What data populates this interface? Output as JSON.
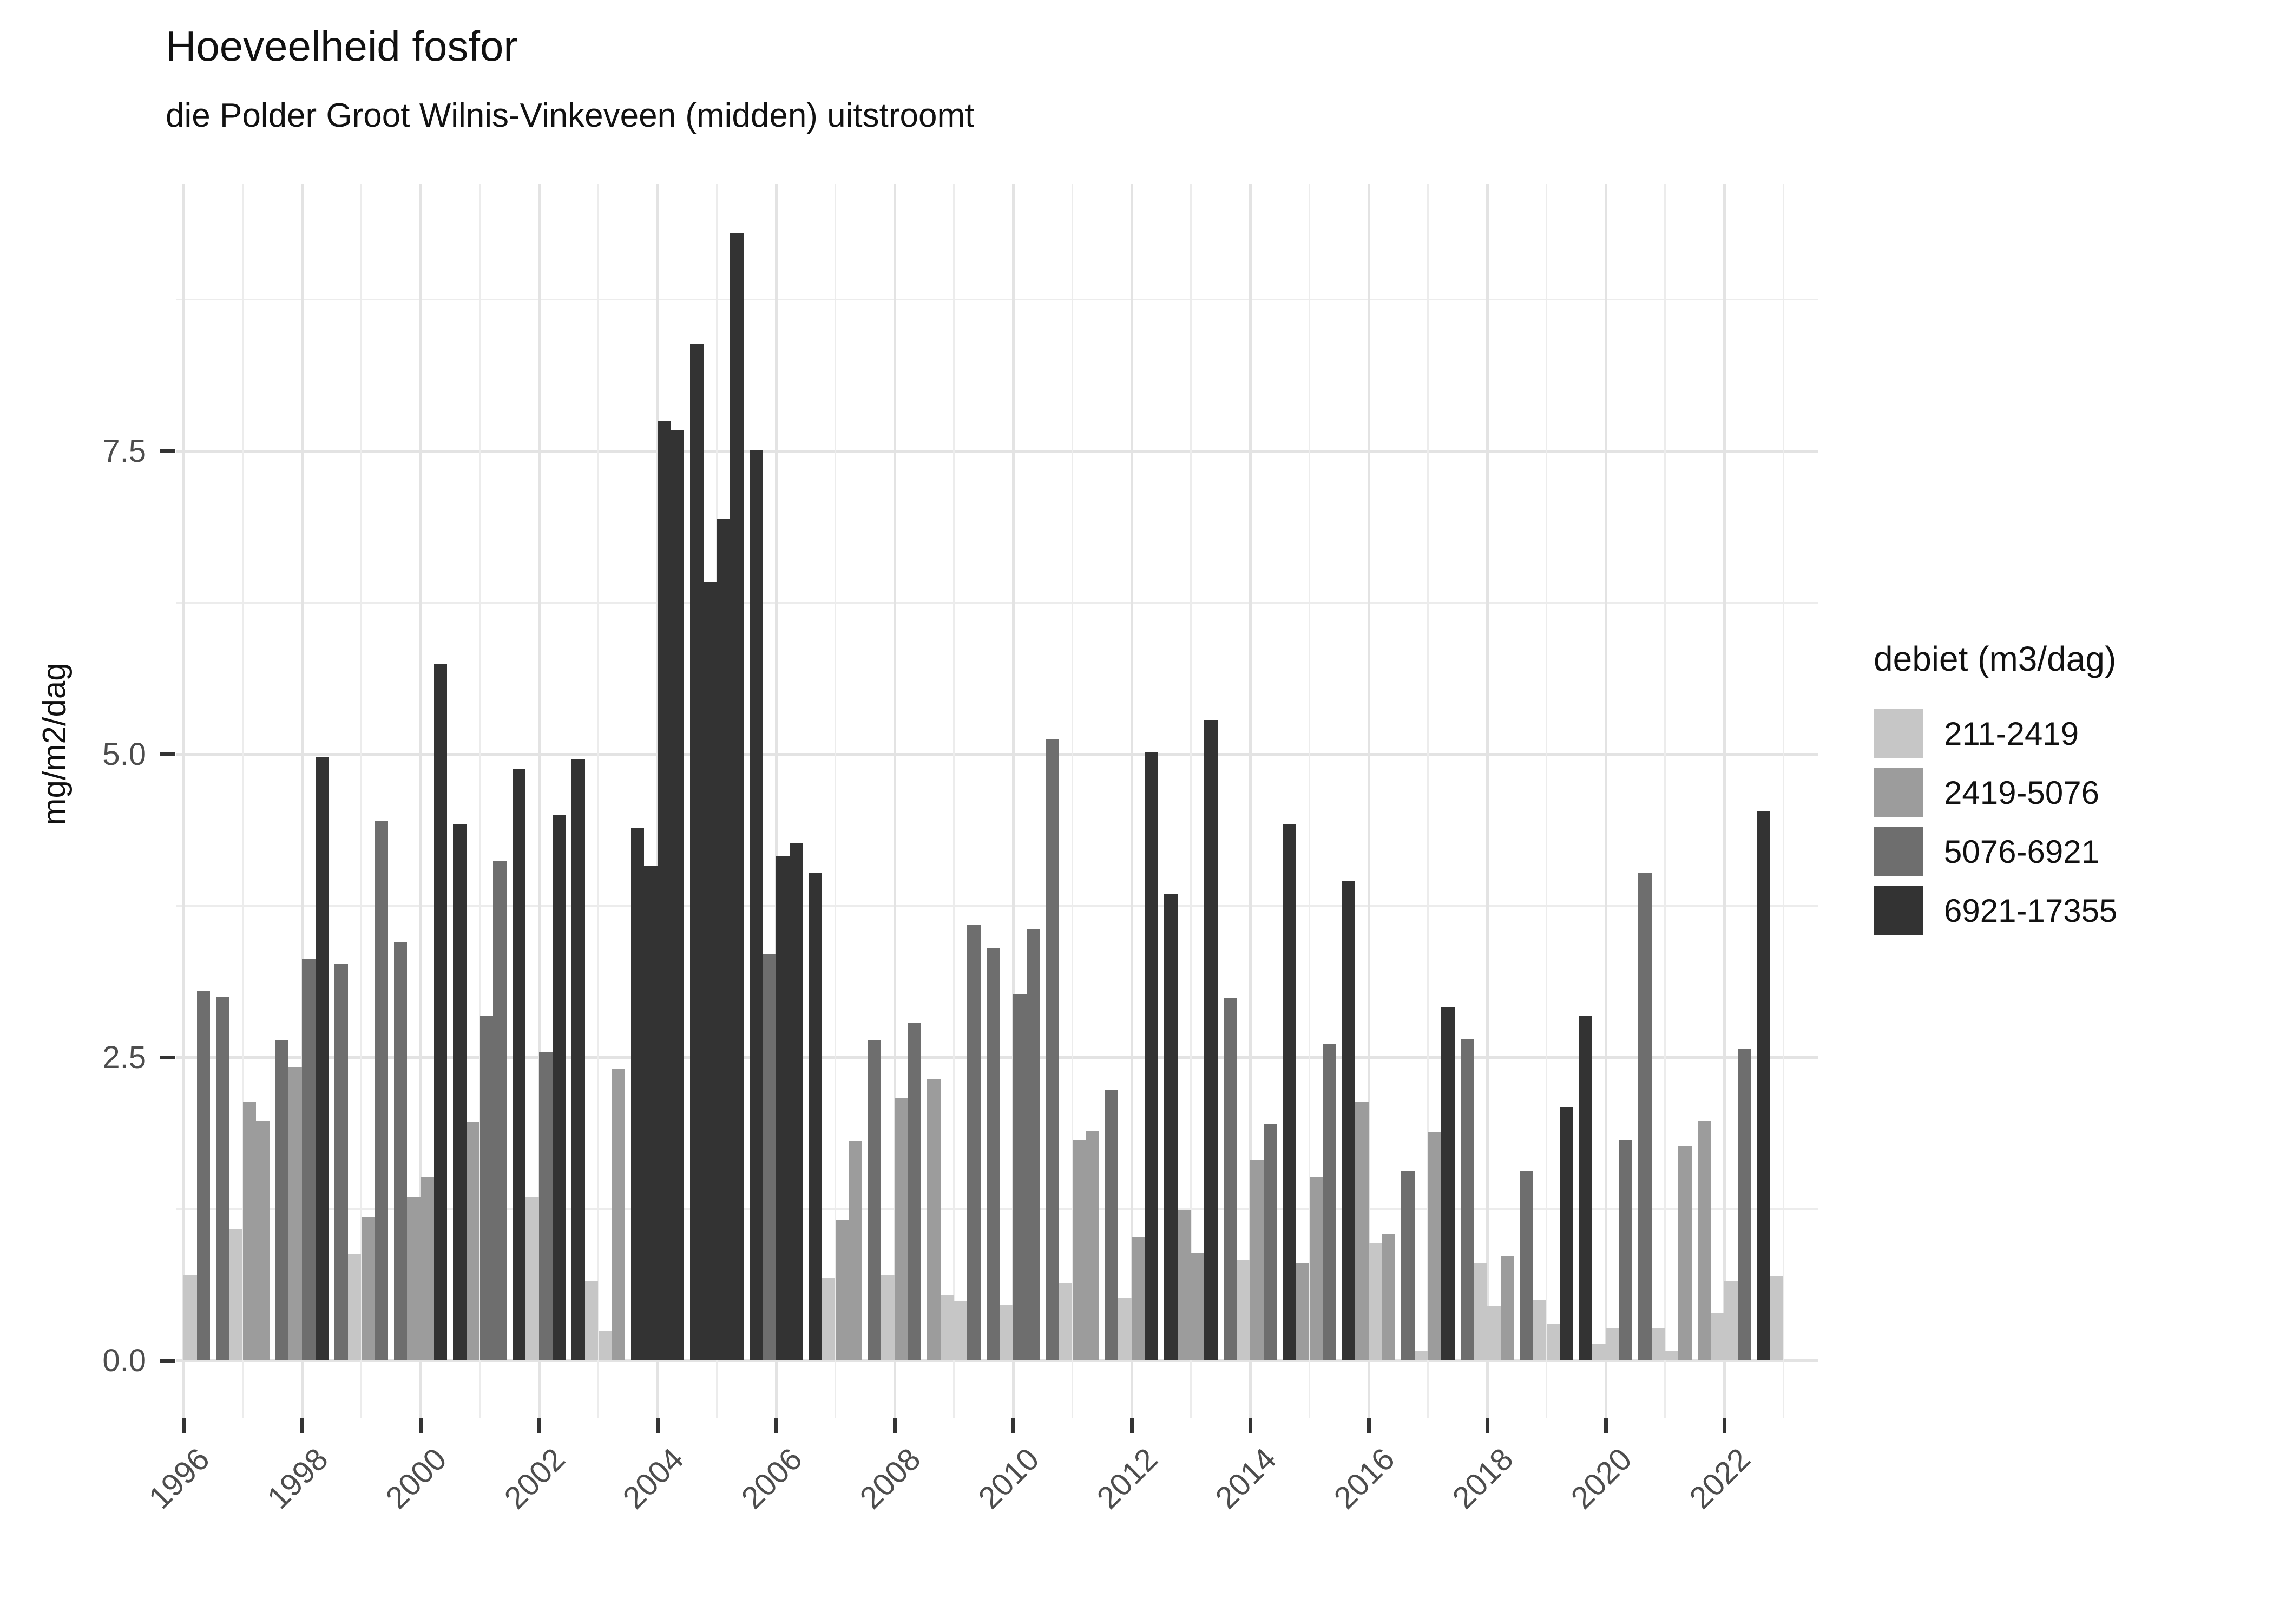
{
  "chart_data": {
    "type": "bar",
    "title": "Hoeveelheid fosfor",
    "subtitle": "die Polder Groot Wilnis-Vinkeveen (midden) uitstroomt",
    "ylabel": "mg/m2/dag",
    "xlabel": "",
    "legend_title": "debiet (m3/dag)",
    "legend_position": "right",
    "grid": true,
    "ylim": [
      0,
      9.8
    ],
    "y_major_labels": [
      "0.0",
      "2.5",
      "5.0",
      "7.5"
    ],
    "y_major_values": [
      0,
      2.5,
      5,
      7.5
    ],
    "y_minor_values": [
      1.25,
      3.75,
      6.25,
      8.75
    ],
    "x_tick_years": [
      1996,
      1998,
      2000,
      2002,
      2004,
      2006,
      2008,
      2010,
      2012,
      2014,
      2016,
      2018,
      2020,
      2022
    ],
    "x_year_range": [
      1996,
      2023
    ],
    "bins": [
      {
        "label": "211-2419",
        "color": "#c6c6c6"
      },
      {
        "label": "2419-5076",
        "color": "#9c9c9c"
      },
      {
        "label": "5076-6921",
        "color": "#6e6e6e"
      },
      {
        "label": "6921-17355",
        "color": "#333333"
      }
    ],
    "bars": [
      [
        1996,
        3,
        0,
        0.7
      ],
      [
        1996,
        4,
        2,
        3.05
      ],
      [
        1997,
        1,
        2,
        3.0
      ],
      [
        1997,
        2,
        0,
        1.08
      ],
      [
        1997,
        3,
        1,
        2.13
      ],
      [
        1997,
        4,
        1,
        1.98
      ],
      [
        1998,
        1,
        2,
        2.64
      ],
      [
        1998,
        2,
        1,
        2.42
      ],
      [
        1998,
        3,
        2,
        3.31
      ],
      [
        1998,
        4,
        3,
        4.98
      ],
      [
        1999,
        1,
        2,
        3.27
      ],
      [
        1999,
        2,
        0,
        0.88
      ],
      [
        1999,
        3,
        1,
        1.18
      ],
      [
        1999,
        4,
        2,
        4.45
      ],
      [
        2000,
        1,
        2,
        3.45
      ],
      [
        2000,
        2,
        1,
        1.35
      ],
      [
        2000,
        3,
        1,
        1.51
      ],
      [
        2000,
        4,
        3,
        5.74
      ],
      [
        2001,
        1,
        3,
        4.42
      ],
      [
        2001,
        2,
        1,
        1.97
      ],
      [
        2001,
        3,
        2,
        2.84
      ],
      [
        2001,
        4,
        2,
        4.12
      ],
      [
        2002,
        1,
        3,
        4.88
      ],
      [
        2002,
        2,
        0,
        1.35
      ],
      [
        2002,
        3,
        2,
        2.54
      ],
      [
        2002,
        4,
        3,
        4.5
      ],
      [
        2003,
        1,
        3,
        4.96
      ],
      [
        2003,
        2,
        0,
        0.65
      ],
      [
        2003,
        3,
        0,
        0.24
      ],
      [
        2003,
        4,
        1,
        2.4
      ],
      [
        2004,
        1,
        3,
        4.39
      ],
      [
        2004,
        2,
        3,
        4.08
      ],
      [
        2004,
        3,
        3,
        7.75
      ],
      [
        2004,
        4,
        3,
        7.67
      ],
      [
        2005,
        1,
        3,
        8.38
      ],
      [
        2005,
        2,
        3,
        6.42
      ],
      [
        2005,
        3,
        3,
        6.94
      ],
      [
        2005,
        4,
        3,
        9.3
      ],
      [
        2006,
        1,
        3,
        7.51
      ],
      [
        2006,
        2,
        2,
        3.35
      ],
      [
        2006,
        3,
        3,
        4.16
      ],
      [
        2006,
        4,
        3,
        4.27
      ],
      [
        2007,
        1,
        3,
        4.02
      ],
      [
        2007,
        2,
        0,
        0.68
      ],
      [
        2007,
        3,
        1,
        1.16
      ],
      [
        2007,
        4,
        1,
        1.81
      ],
      [
        2008,
        1,
        2,
        2.64
      ],
      [
        2008,
        2,
        0,
        0.7
      ],
      [
        2008,
        3,
        1,
        2.16
      ],
      [
        2008,
        4,
        2,
        2.78
      ],
      [
        2009,
        1,
        1,
        2.32
      ],
      [
        2009,
        2,
        0,
        0.54
      ],
      [
        2009,
        3,
        0,
        0.49
      ],
      [
        2009,
        4,
        2,
        3.59
      ],
      [
        2010,
        1,
        2,
        3.4
      ],
      [
        2010,
        2,
        0,
        0.46
      ],
      [
        2010,
        3,
        2,
        3.02
      ],
      [
        2010,
        4,
        2,
        3.56
      ],
      [
        2011,
        1,
        2,
        5.12
      ],
      [
        2011,
        2,
        0,
        0.64
      ],
      [
        2011,
        3,
        1,
        1.82
      ],
      [
        2011,
        4,
        1,
        1.89
      ],
      [
        2012,
        1,
        2,
        2.23
      ],
      [
        2012,
        2,
        0,
        0.52
      ],
      [
        2012,
        3,
        1,
        1.02
      ],
      [
        2012,
        4,
        3,
        5.02
      ],
      [
        2013,
        1,
        3,
        3.85
      ],
      [
        2013,
        2,
        1,
        1.24
      ],
      [
        2013,
        3,
        1,
        0.89
      ],
      [
        2013,
        4,
        3,
        5.28
      ],
      [
        2014,
        1,
        2,
        2.99
      ],
      [
        2014,
        2,
        0,
        0.83
      ],
      [
        2014,
        3,
        1,
        1.65
      ],
      [
        2014,
        4,
        2,
        1.95
      ],
      [
        2015,
        1,
        3,
        4.42
      ],
      [
        2015,
        2,
        1,
        0.8
      ],
      [
        2015,
        3,
        1,
        1.51
      ],
      [
        2015,
        4,
        2,
        2.61
      ],
      [
        2016,
        1,
        3,
        3.95
      ],
      [
        2016,
        2,
        1,
        2.13
      ],
      [
        2016,
        3,
        0,
        0.97
      ],
      [
        2016,
        4,
        1,
        1.04
      ],
      [
        2017,
        1,
        2,
        1.56
      ],
      [
        2017,
        2,
        0,
        0.08
      ],
      [
        2017,
        3,
        1,
        1.88
      ],
      [
        2017,
        4,
        3,
        2.91
      ],
      [
        2018,
        1,
        2,
        2.65
      ],
      [
        2018,
        2,
        0,
        0.8
      ],
      [
        2018,
        3,
        0,
        0.45
      ],
      [
        2018,
        4,
        1,
        0.86
      ],
      [
        2019,
        1,
        2,
        1.56
      ],
      [
        2019,
        2,
        0,
        0.5
      ],
      [
        2019,
        3,
        0,
        0.3
      ],
      [
        2019,
        4,
        3,
        2.09
      ],
      [
        2020,
        1,
        3,
        2.84
      ],
      [
        2020,
        2,
        0,
        0.14
      ],
      [
        2020,
        3,
        0,
        0.27
      ],
      [
        2020,
        4,
        2,
        1.82
      ],
      [
        2021,
        1,
        2,
        4.02
      ],
      [
        2021,
        2,
        0,
        0.27
      ],
      [
        2021,
        3,
        0,
        0.08
      ],
      [
        2021,
        4,
        1,
        1.77
      ],
      [
        2022,
        1,
        1,
        1.98
      ],
      [
        2022,
        2,
        0,
        0.39
      ],
      [
        2022,
        3,
        0,
        0.65
      ],
      [
        2022,
        4,
        2,
        2.57
      ],
      [
        2023,
        1,
        3,
        4.53
      ],
      [
        2023,
        2,
        0,
        0.69
      ]
    ]
  }
}
